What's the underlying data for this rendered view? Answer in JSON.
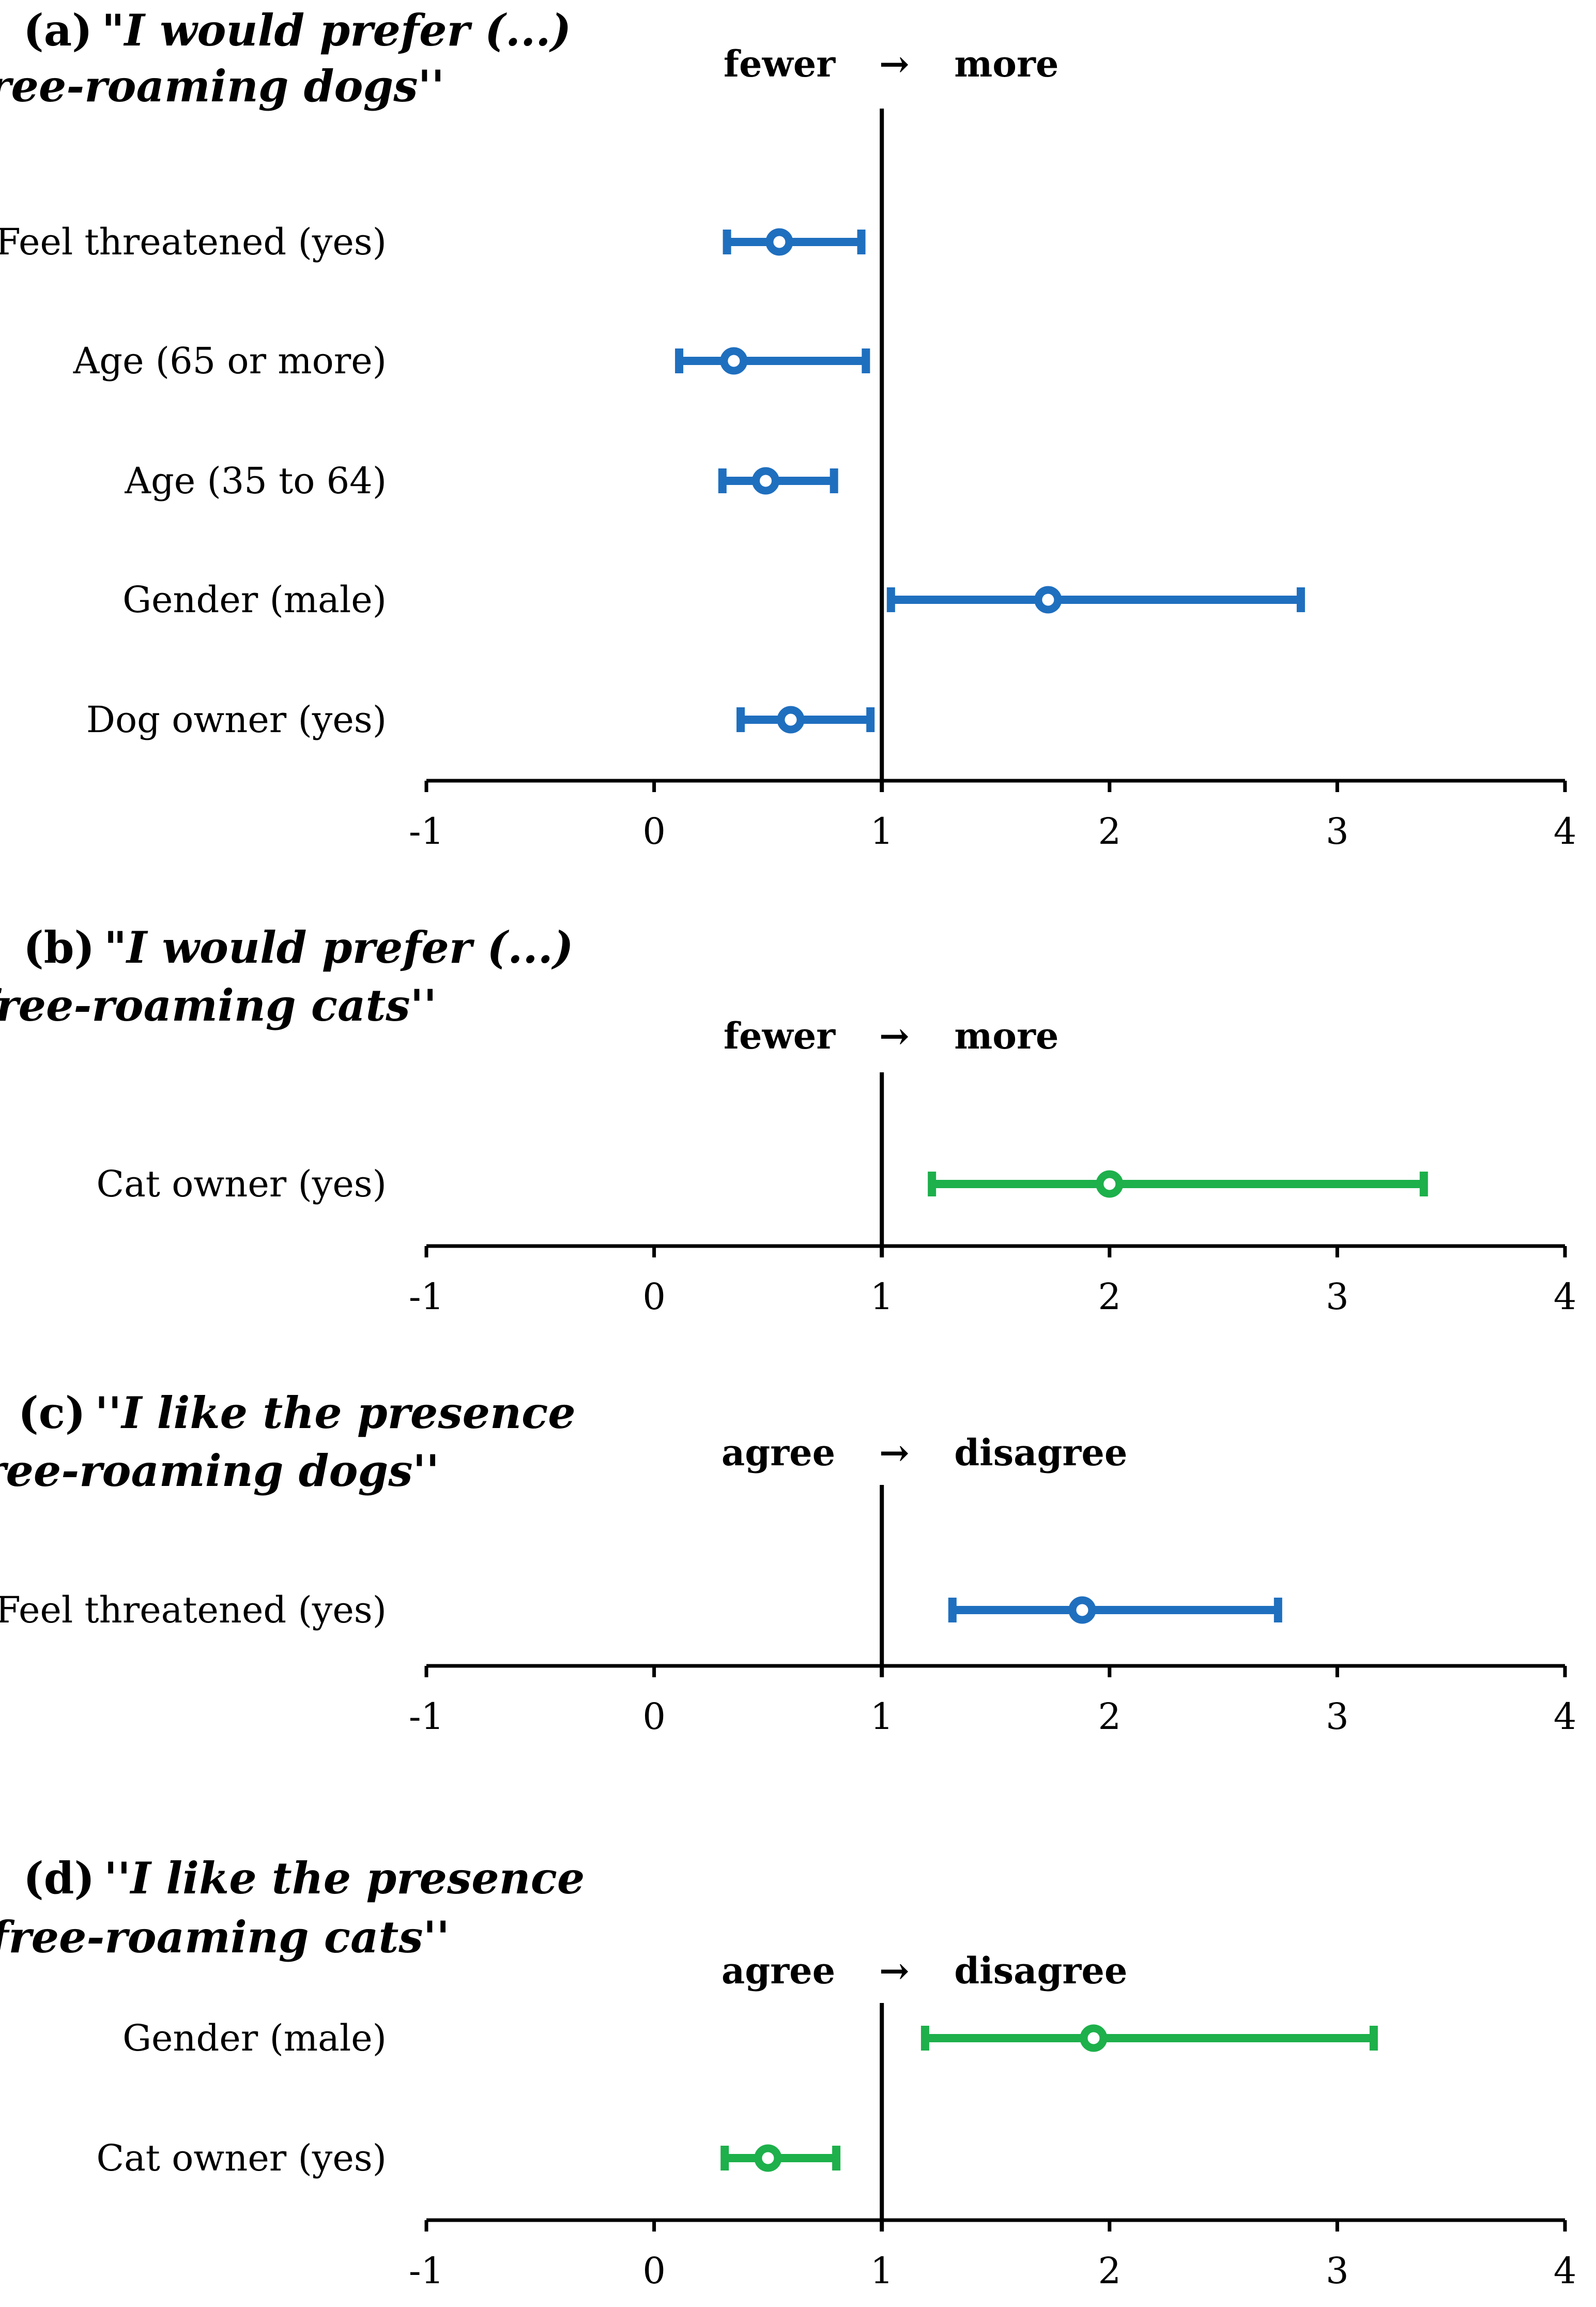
{
  "figure": {
    "axis": {
      "min": -1,
      "max": 4,
      "ticks": [
        "-1",
        "0",
        "1",
        "2",
        "3",
        "4"
      ],
      "reference_value": 1
    },
    "colors": {
      "dogs": "#1f6fbf",
      "cats": "#1db04b",
      "axis": "#000000"
    }
  },
  "chart_data": [
    {
      "type": "scatter",
      "subtype": "odds-ratio-forest-plot",
      "panel_letter": "(a)",
      "title_line1": "\"I would prefer (...)",
      "title_line2": "free-roaming dogs''",
      "direction": {
        "left": "fewer",
        "arrow": "→",
        "right": "more"
      },
      "xlim": [
        -1,
        4
      ],
      "series_color_key": "dogs",
      "rows": [
        {
          "label": "Feel threatened (yes)",
          "estimate": 0.55,
          "ci_low": 0.32,
          "ci_high": 0.91
        },
        {
          "label": "Age (65 or more)",
          "estimate": 0.35,
          "ci_low": 0.11,
          "ci_high": 0.93
        },
        {
          "label": "Age (35 to 64)",
          "estimate": 0.49,
          "ci_low": 0.3,
          "ci_high": 0.79
        },
        {
          "label": "Gender (male)",
          "estimate": 1.73,
          "ci_low": 1.04,
          "ci_high": 2.84
        },
        {
          "label": "Dog owner (yes)",
          "estimate": 0.6,
          "ci_low": 0.38,
          "ci_high": 0.95
        }
      ]
    },
    {
      "type": "scatter",
      "subtype": "odds-ratio-forest-plot",
      "panel_letter": "(b)",
      "title_line1": "\"I would prefer (...)",
      "title_line2": "free-roaming cats''",
      "direction": {
        "left": "fewer",
        "arrow": "→",
        "right": "more"
      },
      "xlim": [
        -1,
        4
      ],
      "series_color_key": "cats",
      "rows": [
        {
          "label": "Cat owner (yes)",
          "estimate": 2.0,
          "ci_low": 1.22,
          "ci_high": 3.38
        }
      ]
    },
    {
      "type": "scatter",
      "subtype": "odds-ratio-forest-plot",
      "panel_letter": "(c)",
      "title_line1": "''I like the presence",
      "title_line2": "of free-roaming dogs''",
      "direction": {
        "left": "agree",
        "arrow": "→",
        "right": "disagree"
      },
      "xlim": [
        -1,
        4
      ],
      "series_color_key": "dogs",
      "rows": [
        {
          "label": "Feel threatened (yes)",
          "estimate": 1.88,
          "ci_low": 1.31,
          "ci_high": 2.74
        }
      ]
    },
    {
      "type": "scatter",
      "subtype": "odds-ratio-forest-plot",
      "panel_letter": "(d)",
      "title_line1": "''I like the presence",
      "title_line2": "of free-roaming cats''",
      "direction": {
        "left": "agree",
        "arrow": "→",
        "right": "disagree"
      },
      "xlim": [
        -1,
        4
      ],
      "series_color_key": "cats",
      "rows": [
        {
          "label": "Gender (male)",
          "estimate": 1.93,
          "ci_low": 1.19,
          "ci_high": 3.16
        },
        {
          "label": "Cat owner (yes)",
          "estimate": 0.5,
          "ci_low": 0.31,
          "ci_high": 0.8
        }
      ]
    }
  ]
}
